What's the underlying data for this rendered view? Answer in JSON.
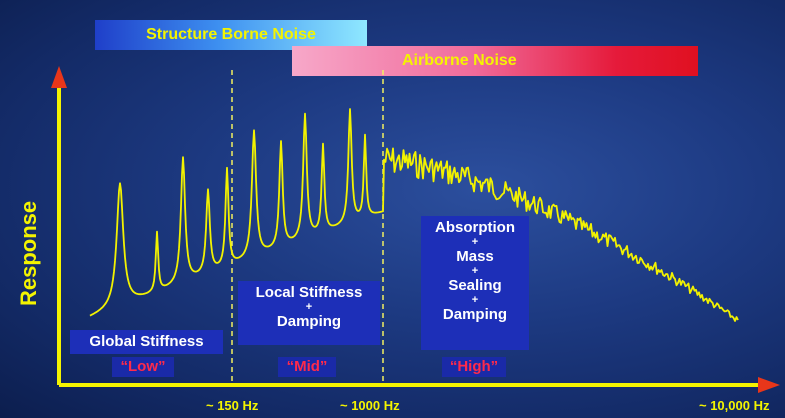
{
  "bands": {
    "structure_borne": "Structure Borne Noise",
    "airborne": "Airborne Noise"
  },
  "axis": {
    "y_label": "Response",
    "ticks": [
      "~ 150 Hz",
      "~ 1000 Hz",
      "~ 10,000 Hz"
    ]
  },
  "regions": {
    "low": {
      "lines": [
        "Global Stiffness"
      ],
      "range_label": "“Low”"
    },
    "mid": {
      "lines": [
        "Local Stiffness",
        "+",
        "Damping"
      ],
      "range_label": "“Mid”"
    },
    "high": {
      "lines": [
        "Absorption",
        "+",
        "Mass",
        "+",
        "Sealing",
        "+",
        "Damping"
      ],
      "range_label": "“High”"
    }
  },
  "colors": {
    "axis": "#f4f400",
    "curve": "#f2f200",
    "range_text": "#ff2a4a",
    "label_box": "#1d2fb8"
  }
}
